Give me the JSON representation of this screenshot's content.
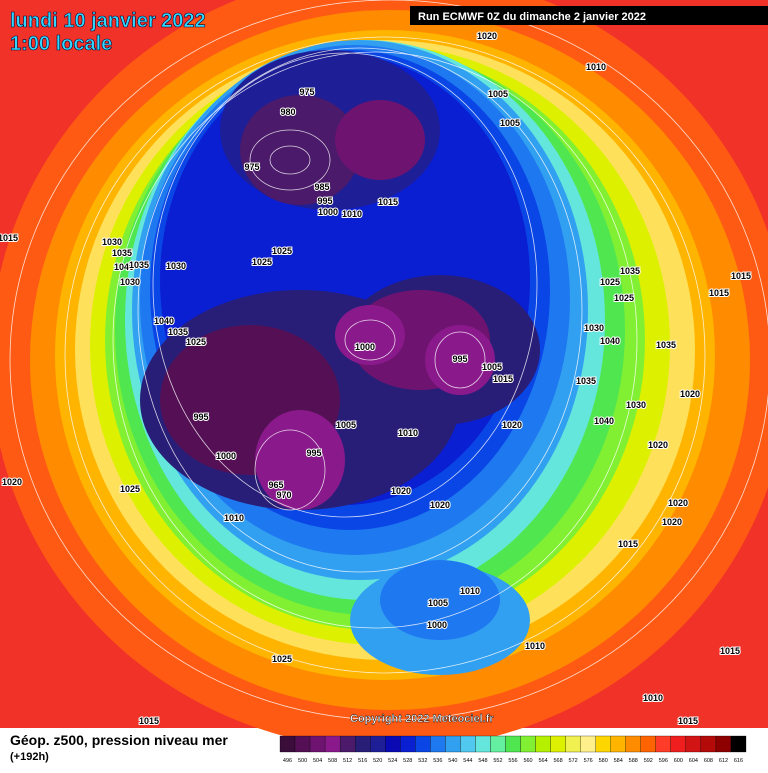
{
  "header": {
    "date": "lundi 10 janvier 2022",
    "time": "1:00 locale"
  },
  "run": "Run ECMWF 0Z du dimanche 2 janvier 2022",
  "copyright": "Copyright 2022 Meteociel.fr",
  "footer": {
    "label": "Géop. z500, pression niveau mer",
    "lead": "(+192h)"
  },
  "legend": {
    "values": [
      496,
      500,
      504,
      508,
      512,
      516,
      520,
      524,
      528,
      532,
      536,
      540,
      544,
      548,
      552,
      556,
      560,
      564,
      568,
      572,
      576,
      580,
      584,
      588,
      592,
      596,
      600,
      604,
      608,
      612,
      616
    ],
    "colors": [
      "#3a0d3a",
      "#551055",
      "#6e1470",
      "#8a1a8c",
      "#4b1a6a",
      "#281e78",
      "#1e1e96",
      "#0a0ab4",
      "#0a1ed2",
      "#0a46e6",
      "#1e78f0",
      "#32a0f0",
      "#50c8f0",
      "#64e6dc",
      "#64f0a0",
      "#50e650",
      "#82f032",
      "#b4f000",
      "#dcf000",
      "#f0f050",
      "#fff08c",
      "#ffd700",
      "#ffb400",
      "#ff8c00",
      "#ff6400",
      "#ff3c28",
      "#f01e1e",
      "#d21414",
      "#b40a0a",
      "#8c0000",
      "#000000"
    ]
  },
  "isobar_labels": [
    975,
    980,
    975,
    985,
    995,
    1000,
    1010,
    1015,
    1020,
    1010,
    1005,
    1005,
    1030,
    1035,
    1040,
    1035,
    1030,
    1030,
    1025,
    1025,
    1040,
    1035,
    1025,
    1000,
    995,
    1005,
    1015,
    995,
    1005,
    1010,
    1020,
    1000,
    995,
    965,
    970,
    1010,
    1020,
    1020,
    1025,
    1020,
    1015,
    1035,
    1025,
    1025,
    1030,
    1040,
    1035,
    1035,
    1030,
    1040,
    1020,
    1020,
    1020,
    1015,
    1015,
    1015,
    1020,
    1010,
    1005,
    1000,
    1010,
    1025,
    1015,
    1010,
    1015,
    1015
  ]
}
